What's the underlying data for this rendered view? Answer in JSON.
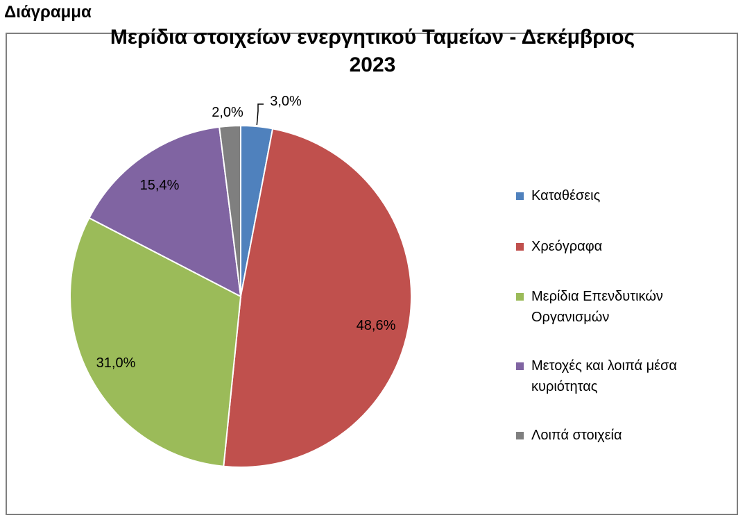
{
  "page": {
    "heading": "Διάγραμμα"
  },
  "chart_data": {
    "type": "pie",
    "title": "Μερίδια στοιχείων ενεργητικού Ταμείων -  Δεκέμβριος 2023",
    "title_lines": [
      "Μερίδια στοιχείων ενεργητικού Ταμείων -  Δεκέμβριος",
      "2023"
    ],
    "legend_position": "right",
    "slices": [
      {
        "name": "Καταθέσεις",
        "value": 3.0,
        "label": "3,0%",
        "color": "#4f81bd"
      },
      {
        "name": "Χρεόγραφα",
        "value": 48.6,
        "label": "48,6%",
        "color": "#c0504d"
      },
      {
        "name": "Μερίδια Επενδυτικών Οργανισμών",
        "value": 31.0,
        "label": "31,0%",
        "color": "#9bbb59"
      },
      {
        "name": "Μετοχές και λοιπά μέσα κυριότητας",
        "value": 15.4,
        "label": "15,4%",
        "color": "#8064a2"
      },
      {
        "name": "Λοιπά στοιχεία",
        "value": 2.0,
        "label": "2,0%",
        "color": "#7f7f7f"
      }
    ],
    "legend": [
      {
        "lines": [
          "Καταθέσεις"
        ],
        "color": "#4f81bd"
      },
      {
        "lines": [
          "Χρεόγραφα"
        ],
        "color": "#c0504d"
      },
      {
        "lines": [
          "Μερίδια Επενδυτικών",
          "Οργανισμών"
        ],
        "color": "#9bbb59"
      },
      {
        "lines": [
          "Μετοχές και λοιπά μέσα",
          "κυριότητας"
        ],
        "color": "#8064a2"
      },
      {
        "lines": [
          "Λοιπά στοιχεία"
        ],
        "color": "#7f7f7f"
      }
    ]
  }
}
